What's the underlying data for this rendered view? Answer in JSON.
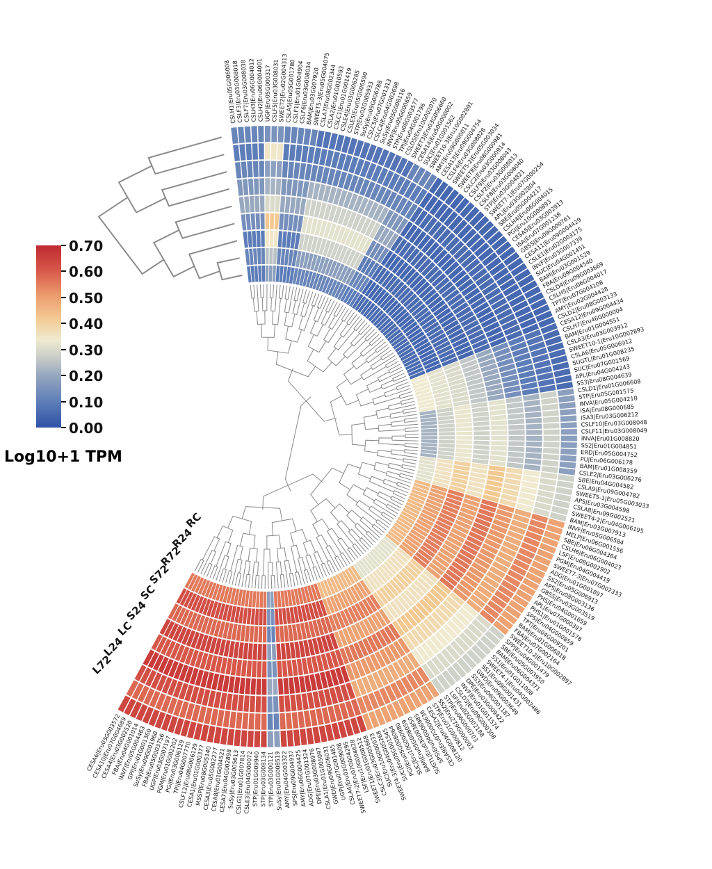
{
  "legend": {
    "title": "Log10+1 TPM",
    "ticks": [
      "0.70",
      "0.60",
      "0.50",
      "0.40",
      "0.30",
      "0.20",
      "0.10",
      "0.00"
    ],
    "min": 0.0,
    "max": 0.7
  },
  "rings_inner_to_outer": [
    "RC",
    "R24",
    "R72",
    "S72",
    "SC",
    "S24",
    "LC",
    "L24",
    "L72"
  ],
  "chart_data": {
    "type": "heatmap",
    "layout": "circular",
    "legend_title": "Log10+1 TPM",
    "value_scale": [
      0.0,
      0.7
    ],
    "grid": "white cell separators",
    "rings_inner_to_outer": [
      "RC",
      "R24",
      "R72",
      "S72",
      "SC",
      "S24",
      "LC",
      "L24",
      "L72"
    ],
    "color_stops": [
      [
        0.0,
        "#2f52a7"
      ],
      [
        0.1,
        "#5d7db8"
      ],
      [
        0.2,
        "#98a8bf"
      ],
      [
        0.28,
        "#cfd2c9"
      ],
      [
        0.34,
        "#efead0"
      ],
      [
        0.42,
        "#f3c992"
      ],
      [
        0.52,
        "#eb9a6d"
      ],
      [
        0.6,
        "#d7584a"
      ],
      [
        0.7,
        "#bf2a30"
      ]
    ],
    "genes": [
      "CSLH1|Eru05G006008",
      "CSLF3|Eru03G008018",
      "CSLF7|Eru03G008038",
      "CSLH3|Eru06G004012",
      "CSLH2|Eru06G004001",
      "UGP|Eru05G000317",
      "CSLF5|Eru03G008031",
      "SWEET2|Eru02G004313",
      "CSLA5|Eru05G001780",
      "CSLF1|Eru01G004904",
      "CSLF6|Eru03G008034",
      "BAM|Eru03G007920",
      "SWEET5-3|Eru05G004075",
      "CSLA7|Eru08G002344",
      "CSLA2|Eru01G010593",
      "CSLC1|Eru01G001419",
      "CSLE4|Eru03G006285",
      "CSLE5|Eru05G006590",
      "STP|Eru02G005933",
      "SuSy|Eru09G006788",
      "CSLC5|Eru07G001313",
      "CSLC4|Eru04G002698",
      "SuSy|Eru05G008116",
      "INVF|Eru05G000659",
      "STP|Eru06G003577",
      "TPI|Eru04G001796",
      "CSLD5|Eru10G002070",
      "SWEET3|Eru03G006660",
      "CESA14|Eru50G000002",
      "SUC|Eru01G001562",
      "SWEET10-3|Eru10G002891",
      "AMY|Eru09G000011",
      "CESA13|Eru09G004754",
      "CSLF4|Eru03G008028",
      "SWEET5-2|Eru05G003034",
      "SWEET8|Eru08G000981",
      "CSLC2|Eru03G000914",
      "CSLF9|Eru03G008043",
      "CSLF2|Eru03G008013",
      "CSLF8|Eru03G008040",
      "STP|Eru03G004821",
      "SWEET7-1|Eru07G000254",
      "APL|Eru03G002804",
      "SBE|Eru05G004217",
      "CSLH4|Eru06G004015",
      "PGI|Eru10G000893",
      "CESA5|Eru03G002913",
      "ISA|Eru07G001238",
      "GBSS|Eru09G000761",
      "CESA11|Eru09G004429",
      "CSLE1|Eru02G003175",
      "INVF|Eru03G007339",
      "SUC|Eru04G001451",
      "BAM|Eru03G001529",
      "FBA|Eru09G004540",
      "CSLD4|Eru09G003669",
      "CSLH5|Eru06G004017",
      "TPT|Eru07G004108",
      "AMY|Eru02G004428",
      "CSLD2|Eru08G003133",
      "CESA12|Eru09G004434",
      "CSLH7|Eru46G000004",
      "BAM|Eru01G004551",
      "CSLA3|Eru03G003912",
      "SWEET10-1|Eru10G002893",
      "CSLA6|Eru05G006912",
      "SUGTL|Eru01G008235",
      "SUC|Eru07G001569",
      "APL|Eru04G004243",
      "SS3|Eru08G004639",
      "CSLD1|Eru01G006608",
      "STP|Eru05G001575",
      "INVA|Eru05G004218",
      "ISA|Eru08G000685",
      "ISA3|Eru03G006212",
      "CSLF10|Eru03G008048",
      "CSLF11|Eru03G008049",
      "INVA|Eru01G008820",
      "SS2|Eru01G004851",
      "ERD|Eru05G004752",
      "PU|Eru06G006178",
      "BAM|Eru01G008359",
      "CSLE2|Eru03G006276",
      "SBE|Eru04G004582",
      "CSLA9|Eru09G004782",
      "SWEET5-1|Eru05G003033",
      "APS|Eru03G004598",
      "CSLA8|Eru09G002521",
      "SWEET4-2|Eru04G006195",
      "BAM|Eru03G007913",
      "INVF|Eru05G006584",
      "MELP|Eru06G001556",
      "SBE|Eru06G004364",
      "CSLH6|Eru06G004023",
      "LSF|Eru08G002902",
      "PGM|Eru04G004419",
      "SWEET7-3|Eru07G002333",
      "ADG|Eru01G001897",
      "SS2|Eru05G006913",
      "APS|Eru08G003136",
      "GBSS|Eru03G003519",
      "PHS|Eru04G001659",
      "APL|Eru07G000397",
      "PHS1|Eru01G001578",
      "SPS|Eru04G000859",
      "TPT|Eru04G009201",
      "BAM|Eru01G006818",
      "FBA|Eru07G002164",
      "SWEET10-2|Eru10G002897",
      "SPP|Eru04G001479",
      "SBE|Eru05G003950",
      "BAM|Eru06G004371",
      "SS1|Eru01G011008",
      "SWEET4-1|Eru04G003486",
      "SS1|Eru09G001431",
      "GWD|Eru09G003649",
      "SS3|Eru06G001187",
      "DPE|Eru03G009422",
      "INVF|Eru01G011574",
      "CSLD3|Eru09G000308",
      "LSF|Eru02G002188",
      "STP|Eru06G000703",
      "SS2|Eru279G000003",
      "STP|Eru01G000812",
      "CESA2|Eru04G008120",
      "CESA9|Eru07G000636",
      "SPS|Eru04G006985",
      "SUGTL|Eru03G003850",
      "BAM|Eru05G008059",
      "SUC|Eru10G000980",
      "PGI|Eru05G008064",
      "SUC|Eru05G001545",
      "SWEET4-3|Eru04G005268",
      "SUC|Eru10G000033",
      "CSLC3|Eru03G005668",
      "SWEET1|Eru01G008512",
      "LSF|Eru10G004628",
      "SWEET7-2|Eru07G004295",
      "CSLA4|Eru03G009008",
      "UGP|Eru07G001485",
      "GWD|Eru09G006031",
      "CSLA1|Eru01G005097",
      "DPE|Eru03G008976",
      "ADG|Eru07G001324",
      "AMY|Eru06G004425",
      "SPS|Eru09G004937",
      "AMY|Eru04G003322",
      "SuSy|Eru01G008519",
      "STP|Eru03G000121",
      "STP|Eru03G008134",
      "STP|Eru01G009940",
      "CSLE3|Eru04G000072",
      "CSLG1|Eru01G007814",
      "SuSy|Eru03G005613",
      "CESA7|Eru04G002898",
      "CESA8|Eru01G004521",
      "CESA3|Eru05G002277",
      "MSSP|Eru08G005140",
      "CESA1|Eru01G000377",
      "CSLF12|Eru08G006129",
      "TPI|Eru04G007770",
      "PGI|Eru03G006129",
      "PGM|Eru01G002202",
      "UGP|Eru03G007197",
      "FBA|Eru05G003756",
      "SuSy|Eru09G001960",
      "GPI|Eru01G001360",
      "INVF|Eru05G004463",
      "FBA|Eru04G001014",
      "CESA4|Eru03G002520",
      "CESA10|Eru07G004689",
      "CESA6|Eru03G003572"
    ],
    "value_profiles": {
      "blue": [
        0.1,
        0.12,
        0.1,
        0.14,
        0.2,
        0.16,
        0.12,
        0.1,
        0.12
      ],
      "mixed_warm": [
        0.18,
        0.25,
        0.35,
        0.42,
        0.3,
        0.22,
        0.18,
        0.35,
        0.15
      ],
      "cool_mid": [
        0.12,
        0.18,
        0.28,
        0.32,
        0.28,
        0.22,
        0.12,
        0.1,
        0.08
      ],
      "deep_blue": [
        0.06,
        0.05,
        0.06,
        0.05,
        0.06,
        0.05,
        0.06,
        0.05,
        0.05
      ],
      "inner_warm": [
        0.34,
        0.32,
        0.3,
        0.26,
        0.2,
        0.14,
        0.1,
        0.08,
        0.06
      ],
      "mixed": [
        0.22,
        0.28,
        0.33,
        0.28,
        0.32,
        0.26,
        0.22,
        0.28,
        0.18
      ],
      "warm": [
        0.32,
        0.36,
        0.4,
        0.36,
        0.42,
        0.38,
        0.34,
        0.3,
        0.28
      ],
      "hot": [
        0.45,
        0.5,
        0.55,
        0.5,
        0.56,
        0.52,
        0.48,
        0.54,
        0.5
      ],
      "red": [
        0.56,
        0.62,
        0.58,
        0.64,
        0.6,
        0.66,
        0.62,
        0.58,
        0.64
      ],
      "cool_streak": [
        0.18,
        0.15,
        0.12,
        0.18,
        0.15,
        0.2,
        0.15,
        0.12,
        0.18
      ]
    },
    "profile_assignments": [
      [
        1,
        5,
        "blue"
      ],
      [
        6,
        8,
        "mixed_warm"
      ],
      [
        9,
        13,
        "blue"
      ],
      [
        14,
        28,
        "cool_mid"
      ],
      [
        29,
        32,
        "blue"
      ],
      [
        33,
        60,
        "deep_blue"
      ],
      [
        61,
        70,
        "inner_warm"
      ],
      [
        71,
        83,
        "mixed"
      ],
      [
        84,
        90,
        "warm"
      ],
      [
        91,
        109,
        "hot"
      ],
      [
        110,
        122,
        "warm"
      ],
      [
        123,
        134,
        "hot"
      ],
      [
        135,
        147,
        "red"
      ],
      [
        148,
        149,
        "cool_streak"
      ],
      [
        150,
        172,
        "red"
      ]
    ],
    "note": "values are visual estimates on the 0-0.7 Log10+1 TPM scale"
  }
}
